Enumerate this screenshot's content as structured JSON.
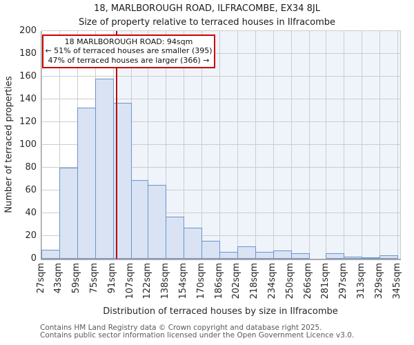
{
  "header": {
    "title": "18, MARLBOROUGH ROAD, ILFRACOMBE, EX34 8JL",
    "subtitle": "Size of property relative to terraced houses in Ilfracombe"
  },
  "annotation": {
    "line1": "18 MARLBOROUGH ROAD: 94sqm",
    "line2": "← 51% of terraced houses are smaller (395)",
    "line3": "47% of terraced houses are larger (366) →"
  },
  "chart_data": {
    "type": "bar",
    "title": "18, MARLBOROUGH ROAD, ILFRACOMBE, EX34 8JL",
    "subtitle": "Size of property relative to terraced houses in Ilfracombe",
    "xlabel": "Distribution of terraced houses by size in Ilfracombe",
    "ylabel": "Number of terraced properties",
    "categories": [
      "27sqm",
      "43sqm",
      "59sqm",
      "75sqm",
      "91sqm",
      "107sqm",
      "122sqm",
      "138sqm",
      "154sqm",
      "170sqm",
      "186sqm",
      "202sqm",
      "218sqm",
      "234sqm",
      "250sqm",
      "266sqm",
      "281sqm",
      "297sqm",
      "313sqm",
      "329sqm",
      "345sqm"
    ],
    "bin_edges": [
      27,
      43,
      59,
      75,
      91,
      107,
      122,
      138,
      154,
      170,
      186,
      202,
      218,
      234,
      250,
      266,
      281,
      297,
      313,
      329,
      345
    ],
    "values": [
      8,
      80,
      133,
      158,
      137,
      69,
      65,
      37,
      27,
      16,
      6,
      11,
      6,
      7,
      5,
      0,
      5,
      2,
      1,
      3
    ],
    "ylim": [
      0,
      200
    ],
    "ytick_step": 20,
    "grid": true,
    "legend": false,
    "marker": {
      "value": 94,
      "label": "94sqm"
    }
  },
  "footer": {
    "line1": "Contains HM Land Registry data © Crown copyright and database right 2025.",
    "line2": "Contains public sector information licensed under the Open Government Licence v3.0."
  },
  "colors": {
    "bar_fill": "#d9e3f4",
    "bar_border": "#6b94ca",
    "marker_line": "#bb0000",
    "annotation_border": "#cc0000",
    "shade_right_of_marker": "#eff4fb",
    "gridline": "#cccccc",
    "footer_text": "#595959"
  }
}
